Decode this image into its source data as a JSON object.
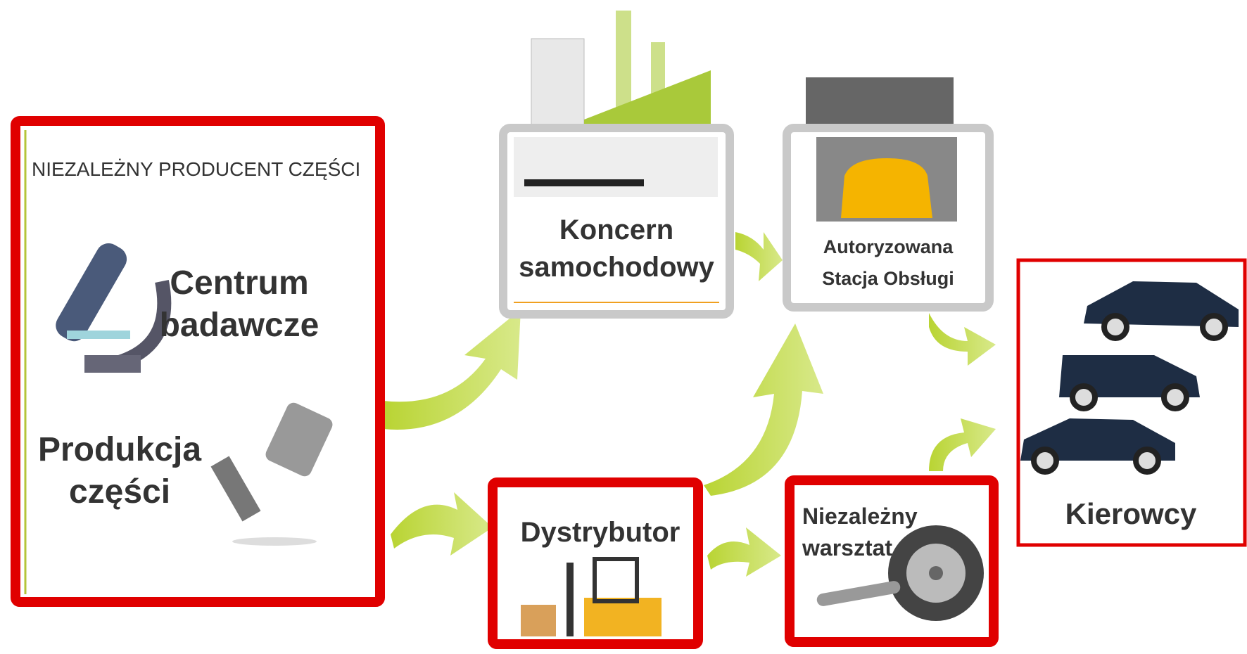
{
  "producer": {
    "title": "NIEZALEŻNY PRODUCENT CZĘŚCI",
    "research": [
      "Centrum",
      "badawcze"
    ],
    "production": [
      "Produkcja",
      "części"
    ]
  },
  "nodes": [
    {
      "label": [
        "Koncern",
        "samochodowy"
      ]
    },
    {
      "label": [
        "Autoryzowana",
        "Stacja Obsługi"
      ]
    },
    {
      "label": [
        "Dystrybutor"
      ]
    },
    {
      "label": [
        "Niezależny",
        "warsztat"
      ]
    },
    {
      "label": [
        "Kierowcy"
      ]
    }
  ]
}
